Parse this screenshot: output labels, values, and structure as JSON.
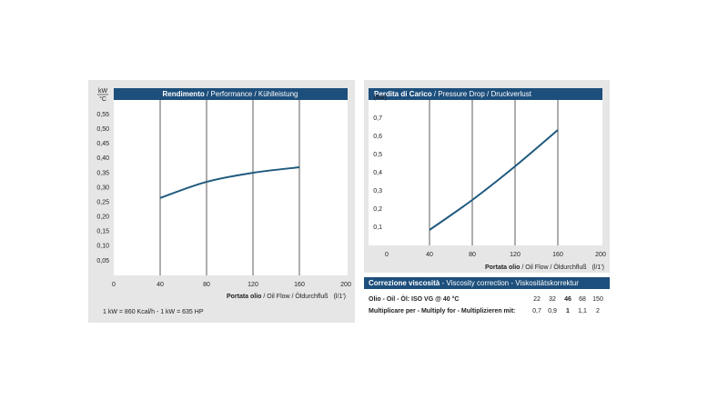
{
  "chart_data": [
    {
      "type": "line",
      "title_bold": "Rendimento",
      "title": " / Performance / Kühlleistung",
      "y_unit_num": "kW",
      "y_unit_den": "°C",
      "xlabel_bold": "Portata olio",
      "xlabel": " / Oil Flow / Öldurchfluß",
      "xunit": "(l/1')",
      "note": "1 kW = 860 Kcal/h  - 1 kW = 635 HP",
      "x": [
        40,
        80,
        120,
        160
      ],
      "series": [
        {
          "color": "#1f5a7e",
          "values": [
            0.265,
            0.32,
            0.351,
            0.37
          ]
        }
      ],
      "xlim": [
        0,
        200
      ],
      "xticks": [
        0,
        40,
        80,
        120,
        160,
        200
      ],
      "ylim": [
        0,
        0.6
      ],
      "yticks": [
        {
          "value": 0.05,
          "label": "0,05"
        },
        {
          "value": 0.1,
          "label": "0,10"
        },
        {
          "value": 0.15,
          "label": "0,15"
        },
        {
          "value": 0.2,
          "label": "0,20"
        },
        {
          "value": 0.25,
          "label": "0,25"
        },
        {
          "value": 0.3,
          "label": "0,30"
        },
        {
          "value": 0.35,
          "label": "0,35"
        },
        {
          "value": 0.4,
          "label": "0,40"
        },
        {
          "value": 0.45,
          "label": "0,45"
        },
        {
          "value": 0.5,
          "label": "0,50"
        },
        {
          "value": 0.55,
          "label": "0,55"
        }
      ],
      "grid": true
    },
    {
      "type": "line",
      "title_bold": "Perdita di Carico",
      "title": " / Pressure Drop / Druckverlust",
      "ylabel": "(bar)",
      "xlabel_bold": "Portata olio",
      "xlabel": " / Oil Flow  / Öldurchfluß",
      "xunit": "(l/1')",
      "x": [
        40,
        80,
        120,
        160
      ],
      "series": [
        {
          "color": "#1f5a7e",
          "values": [
            0.085,
            0.25,
            0.435,
            0.635
          ]
        }
      ],
      "xlim": [
        0,
        200
      ],
      "xticks": [
        0,
        40,
        80,
        120,
        160,
        200
      ],
      "ylim": [
        0,
        0.8
      ],
      "yticks": [
        {
          "value": 0.1,
          "label": "0,1"
        },
        {
          "value": 0.2,
          "label": "0,2"
        },
        {
          "value": 0.3,
          "label": "0,3"
        },
        {
          "value": 0.4,
          "label": "0,4"
        },
        {
          "value": 0.5,
          "label": "0,5"
        },
        {
          "value": 0.6,
          "label": "0,6"
        },
        {
          "value": 0.7,
          "label": "0,7"
        }
      ],
      "grid": true
    }
  ],
  "table": {
    "title_bold": "Correzione viscosità",
    "title": "  -  Viscosity correction  -  Viskositätskorrektur",
    "rows": [
      {
        "label_bold": "Olio - Oil - Öl: ISO VG @ 40 °C",
        "cells": [
          "22",
          "32",
          "46",
          "68",
          "150"
        ]
      },
      {
        "label_bold": "Multiplicare per - Multiply for - Multiplizieren mit:",
        "cells": [
          "0,7",
          "0,9",
          "1",
          "1,1",
          "2"
        ]
      }
    ]
  }
}
